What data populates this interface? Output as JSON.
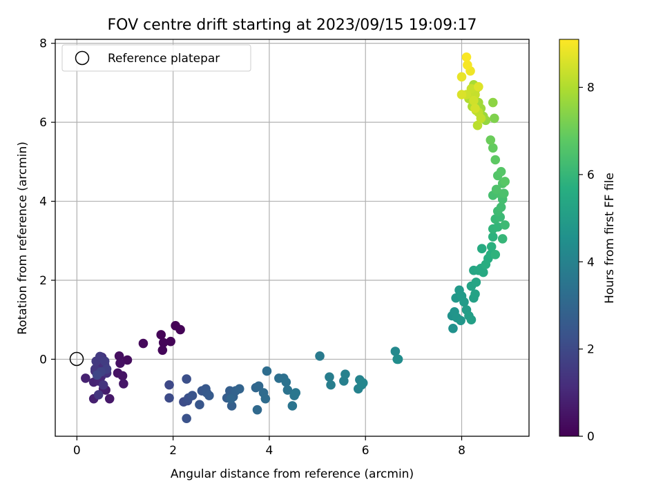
{
  "chart_data": {
    "type": "scatter",
    "title": "FOV centre drift starting at 2023/09/15 19:09:17",
    "xlabel": "Angular distance from reference (arcmin)",
    "ylabel": "Rotation from reference (arcmin)",
    "xlim": [
      -0.45,
      9.4
    ],
    "ylim": [
      -1.95,
      8.1
    ],
    "xticks": [
      0,
      2,
      4,
      6,
      8
    ],
    "yticks": [
      0,
      2,
      4,
      6,
      8
    ],
    "grid": true,
    "legend": {
      "position": "top-left",
      "entries": [
        "Reference platepar"
      ]
    },
    "reference_point": {
      "label": "Reference platepar",
      "x": 0,
      "y": 0
    },
    "colorbar": {
      "label": "Hours from first FF file",
      "range": [
        0,
        9.1
      ],
      "ticks": [
        0,
        2,
        4,
        6,
        8
      ],
      "colormap": "viridis"
    },
    "colors": {
      "frame": "#000000",
      "grid": "#b0b0b0"
    },
    "points": [
      [
        2.05,
        0.85,
        0.02
      ],
      [
        2.15,
        0.75,
        0.05
      ],
      [
        1.75,
        0.62,
        0.08
      ],
      [
        1.95,
        0.45,
        0.1
      ],
      [
        1.8,
        0.42,
        0.12
      ],
      [
        1.78,
        0.23,
        0.15
      ],
      [
        1.38,
        0.4,
        0.2
      ],
      [
        1.05,
        -0.02,
        0.3
      ],
      [
        0.88,
        0.08,
        0.35
      ],
      [
        0.9,
        -0.1,
        0.4
      ],
      [
        0.85,
        -0.35,
        0.45
      ],
      [
        0.95,
        -0.42,
        0.5
      ],
      [
        0.97,
        -0.62,
        0.55
      ],
      [
        0.68,
        -1.0,
        0.6
      ],
      [
        0.6,
        -0.78,
        0.7
      ],
      [
        0.55,
        -0.75,
        0.75
      ],
      [
        0.35,
        -1.0,
        0.8
      ],
      [
        0.18,
        -0.48,
        0.85
      ],
      [
        0.35,
        -0.58,
        0.9
      ],
      [
        0.45,
        -0.55,
        0.95
      ],
      [
        0.5,
        -0.45,
        1.0
      ],
      [
        0.38,
        -0.3,
        1.05
      ],
      [
        0.42,
        -0.2,
        1.1
      ],
      [
        0.48,
        -0.1,
        1.15
      ],
      [
        0.52,
        0.05,
        1.2
      ],
      [
        0.58,
        -0.15,
        1.25
      ],
      [
        0.62,
        -0.35,
        1.3
      ],
      [
        0.55,
        -0.65,
        1.35
      ],
      [
        0.45,
        -0.9,
        1.4
      ],
      [
        0.38,
        -0.25,
        1.45
      ],
      [
        0.4,
        -0.05,
        1.5
      ],
      [
        0.48,
        0.07,
        1.55
      ],
      [
        0.58,
        -0.05,
        1.6
      ],
      [
        0.62,
        -0.25,
        1.7
      ],
      [
        0.5,
        -0.32,
        1.8
      ],
      [
        0.42,
        -0.4,
        1.9
      ],
      [
        1.92,
        -0.65,
        2.0
      ],
      [
        1.92,
        -0.98,
        2.05
      ],
      [
        2.22,
        -1.08,
        2.1
      ],
      [
        2.3,
        -1.05,
        2.15
      ],
      [
        2.28,
        -0.5,
        2.2
      ],
      [
        2.32,
        -0.98,
        2.25
      ],
      [
        2.28,
        -1.5,
        2.3
      ],
      [
        2.4,
        -0.92,
        2.35
      ],
      [
        2.55,
        -1.15,
        2.4
      ],
      [
        2.6,
        -0.8,
        2.45
      ],
      [
        2.68,
        -0.75,
        2.5
      ],
      [
        2.7,
        -0.85,
        2.55
      ],
      [
        2.75,
        -0.92,
        2.6
      ],
      [
        3.12,
        -0.98,
        2.65
      ],
      [
        3.18,
        -0.8,
        2.7
      ],
      [
        3.22,
        -1.18,
        2.75
      ],
      [
        3.25,
        -0.95,
        2.8
      ],
      [
        3.3,
        -0.8,
        2.85
      ],
      [
        3.38,
        -0.75,
        2.9
      ],
      [
        3.2,
        -1.0,
        2.95
      ],
      [
        3.72,
        -0.72,
        3.0
      ],
      [
        3.78,
        -0.68,
        3.05
      ],
      [
        3.75,
        -1.28,
        3.1
      ],
      [
        3.88,
        -0.85,
        3.15
      ],
      [
        3.92,
        -1.0,
        3.2
      ],
      [
        3.95,
        -0.3,
        3.25
      ],
      [
        4.2,
        -0.48,
        3.3
      ],
      [
        4.3,
        -0.48,
        3.35
      ],
      [
        4.35,
        -0.58,
        3.4
      ],
      [
        4.38,
        -0.78,
        3.45
      ],
      [
        4.48,
        -1.18,
        3.5
      ],
      [
        4.52,
        -0.92,
        3.55
      ],
      [
        4.55,
        -0.85,
        3.6
      ],
      [
        5.05,
        0.08,
        3.7
      ],
      [
        5.25,
        -0.45,
        3.8
      ],
      [
        5.28,
        -0.65,
        3.85
      ],
      [
        5.55,
        -0.55,
        3.9
      ],
      [
        5.58,
        -0.38,
        3.95
      ],
      [
        5.85,
        -0.75,
        4.0
      ],
      [
        5.88,
        -0.52,
        4.05
      ],
      [
        5.92,
        -0.65,
        4.1
      ],
      [
        5.95,
        -0.6,
        4.15
      ],
      [
        6.62,
        0.2,
        4.25
      ],
      [
        6.68,
        0.0,
        4.35
      ],
      [
        6.66,
        0.0,
        4.4
      ],
      [
        7.82,
        0.78,
        4.55
      ],
      [
        7.8,
        1.1,
        4.6
      ],
      [
        7.85,
        1.2,
        4.65
      ],
      [
        7.9,
        1.05,
        4.7
      ],
      [
        7.98,
        0.98,
        4.75
      ],
      [
        7.88,
        1.55,
        4.8
      ],
      [
        7.95,
        1.75,
        4.85
      ],
      [
        8.0,
        1.6,
        4.9
      ],
      [
        8.05,
        1.45,
        4.95
      ],
      [
        8.1,
        1.25,
        5.0
      ],
      [
        8.15,
        1.1,
        5.05
      ],
      [
        8.2,
        1.0,
        5.1
      ],
      [
        8.25,
        1.55,
        5.15
      ],
      [
        8.28,
        1.65,
        5.2
      ],
      [
        8.2,
        1.85,
        5.25
      ],
      [
        8.3,
        1.95,
        5.3
      ],
      [
        8.25,
        2.25,
        5.35
      ],
      [
        8.35,
        2.25,
        5.4
      ],
      [
        8.4,
        2.3,
        5.45
      ],
      [
        8.45,
        2.2,
        5.5
      ],
      [
        8.42,
        2.8,
        5.55
      ],
      [
        8.55,
        2.55,
        5.6
      ],
      [
        8.5,
        2.4,
        5.65
      ],
      [
        8.6,
        2.65,
        5.7
      ],
      [
        8.62,
        2.85,
        5.75
      ],
      [
        8.65,
        3.1,
        5.8
      ],
      [
        8.7,
        2.65,
        5.85
      ],
      [
        8.65,
        3.3,
        5.9
      ],
      [
        8.75,
        3.35,
        5.95
      ],
      [
        8.85,
        3.05,
        6.0
      ],
      [
        8.7,
        3.55,
        6.05
      ],
      [
        8.8,
        3.6,
        6.1
      ],
      [
        8.9,
        3.4,
        6.15
      ],
      [
        8.75,
        3.75,
        6.2
      ],
      [
        8.82,
        3.85,
        6.25
      ],
      [
        8.85,
        4.05,
        6.3
      ],
      [
        8.65,
        4.15,
        6.35
      ],
      [
        8.78,
        4.2,
        6.4
      ],
      [
        8.88,
        4.2,
        6.45
      ],
      [
        8.72,
        4.3,
        6.5
      ],
      [
        8.85,
        4.45,
        6.55
      ],
      [
        8.75,
        4.65,
        6.6
      ],
      [
        8.82,
        4.75,
        6.65
      ],
      [
        8.9,
        4.5,
        6.7
      ],
      [
        8.7,
        5.05,
        6.8
      ],
      [
        8.65,
        5.35,
        6.9
      ],
      [
        8.6,
        5.55,
        7.0
      ],
      [
        8.68,
        6.1,
        7.3
      ],
      [
        8.65,
        6.5,
        7.5
      ],
      [
        8.5,
        6.05,
        7.6
      ],
      [
        8.45,
        6.15,
        7.7
      ],
      [
        8.4,
        6.35,
        7.75
      ],
      [
        8.35,
        6.5,
        7.8
      ],
      [
        8.3,
        6.85,
        7.85
      ],
      [
        8.25,
        6.95,
        7.9
      ],
      [
        8.22,
        6.4,
        7.95
      ],
      [
        8.15,
        6.6,
        8.0
      ],
      [
        8.3,
        6.3,
        8.1
      ],
      [
        8.33,
        5.92,
        8.15
      ],
      [
        8.35,
        6.25,
        8.2
      ],
      [
        8.4,
        6.1,
        8.25
      ],
      [
        8.28,
        6.7,
        8.3
      ],
      [
        8.2,
        6.85,
        8.35
      ],
      [
        8.1,
        6.7,
        8.4
      ],
      [
        8.25,
        6.55,
        8.45
      ],
      [
        8.28,
        6.35,
        8.5
      ],
      [
        8.0,
        6.7,
        8.6
      ],
      [
        8.35,
        6.9,
        8.65
      ],
      [
        8.0,
        7.15,
        8.8
      ],
      [
        8.18,
        7.3,
        8.9
      ],
      [
        8.12,
        7.45,
        9.0
      ],
      [
        8.1,
        7.65,
        9.05
      ]
    ]
  }
}
